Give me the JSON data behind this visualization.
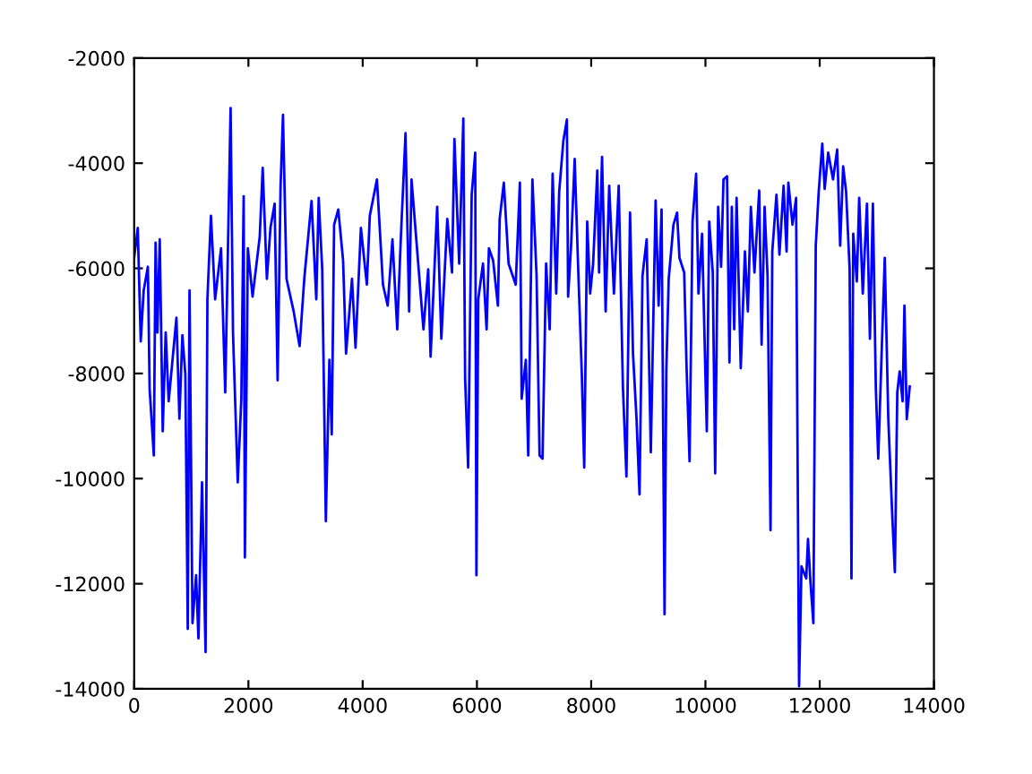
{
  "chart_data": {
    "type": "line",
    "x": [
      0,
      63,
      115,
      167,
      240,
      271,
      344,
      375,
      406,
      448,
      500,
      552,
      604,
      740,
      792,
      844,
      896,
      938,
      969,
      1021,
      1084,
      1125,
      1188,
      1250,
      1282,
      1344,
      1417,
      1521,
      1594,
      1688,
      1730,
      1813,
      1876,
      1917,
      1938,
      1990,
      2073,
      2198,
      2250,
      2323,
      2386,
      2459,
      2511,
      2563,
      2605,
      2667,
      2792,
      2896,
      2980,
      3105,
      3188,
      3230,
      3292,
      3355,
      3417,
      3459,
      3500,
      3573,
      3657,
      3709,
      3813,
      3875,
      3969,
      4073,
      4125,
      4250,
      4355,
      4438,
      4521,
      4605,
      4667,
      4750,
      4813,
      4855,
      5064,
      5147,
      5189,
      5304,
      5377,
      5481,
      5564,
      5606,
      5689,
      5762,
      5793,
      5846,
      5908,
      5970,
      5991,
      6023,
      6106,
      6169,
      6210,
      6283,
      6367,
      6398,
      6471,
      6554,
      6679,
      6752,
      6783,
      6856,
      6898,
      6971,
      7044,
      7096,
      7148,
      7211,
      7273,
      7325,
      7388,
      7440,
      7513,
      7575,
      7596,
      7648,
      7711,
      7773,
      7836,
      7878,
      7930,
      7982,
      8034,
      8107,
      8138,
      8190,
      8253,
      8315,
      8398,
      8482,
      8555,
      8617,
      8680,
      8732,
      8794,
      8846,
      8898,
      8971,
      9044,
      9096,
      9128,
      9180,
      9232,
      9284,
      9315,
      9357,
      9440,
      9503,
      9545,
      9628,
      9670,
      9722,
      9774,
      9837,
      9878,
      9941,
      10003,
      10024,
      10066,
      10128,
      10170,
      10222,
      10274,
      10316,
      10378,
      10420,
      10462,
      10503,
      10545,
      10587,
      10618,
      10691,
      10743,
      10795,
      10858,
      10941,
      10983,
      11035,
      11087,
      11139,
      11170,
      11243,
      11295,
      11368,
      11420,
      11451,
      11524,
      11587,
      11608,
      11639,
      11681,
      11764,
      11795,
      11837,
      11889,
      11931,
      11983,
      12045,
      12087,
      12149,
      12233,
      12306,
      12358,
      12410,
      12462,
      12524,
      12556,
      12587,
      12650,
      12691,
      12754,
      12827,
      12879,
      12931,
      12983,
      13025,
      13087,
      13139,
      13201,
      13274,
      13316,
      13358,
      13399,
      13451,
      13483,
      13524,
      13576
    ],
    "series": [
      {
        "color": "#0000ff",
        "values": [
          -5800,
          -5230,
          -7390,
          -6420,
          -5970,
          -8300,
          -9560,
          -5510,
          -7220,
          -5450,
          -9100,
          -7220,
          -8530,
          -6940,
          -8860,
          -7270,
          -8020,
          -12860,
          -6420,
          -12750,
          -11840,
          -13040,
          -10070,
          -13300,
          -6590,
          -5000,
          -6590,
          -5620,
          -8360,
          -2950,
          -7220,
          -10070,
          -8480,
          -4630,
          -11500,
          -5620,
          -6540,
          -5400,
          -4090,
          -6200,
          -5230,
          -4770,
          -8130,
          -4430,
          -3080,
          -6200,
          -6820,
          -7480,
          -6170,
          -4720,
          -6590,
          -4660,
          -6020,
          -10810,
          -7740,
          -9160,
          -5170,
          -4880,
          -5850,
          -7620,
          -6200,
          -7510,
          -5230,
          -6310,
          -5000,
          -4310,
          -6310,
          -6710,
          -5450,
          -7160,
          -5450,
          -3430,
          -6820,
          -4310,
          -7160,
          -6020,
          -7680,
          -4830,
          -7340,
          -5060,
          -6080,
          -3540,
          -5910,
          -3150,
          -8080,
          -9790,
          -4600,
          -3800,
          -11840,
          -6590,
          -5910,
          -7160,
          -5620,
          -5850,
          -6710,
          -5060,
          -4370,
          -5910,
          -6310,
          -4370,
          -8480,
          -7740,
          -9560,
          -4310,
          -6140,
          -9560,
          -9620,
          -5910,
          -7160,
          -4200,
          -6480,
          -4540,
          -3570,
          -3170,
          -6540,
          -5570,
          -3920,
          -6020,
          -8020,
          -9790,
          -5110,
          -6480,
          -5910,
          -4140,
          -6080,
          -3880,
          -6820,
          -4430,
          -6480,
          -4430,
          -8250,
          -9960,
          -4940,
          -7620,
          -8870,
          -10300,
          -6140,
          -5450,
          -9500,
          -6480,
          -4710,
          -6710,
          -4880,
          -12580,
          -7960,
          -6200,
          -5170,
          -4940,
          -5800,
          -6080,
          -7900,
          -9670,
          -5110,
          -4200,
          -6480,
          -5340,
          -8190,
          -9100,
          -5110,
          -6080,
          -9900,
          -4830,
          -5970,
          -4310,
          -4250,
          -7790,
          -4830,
          -7160,
          -4660,
          -6480,
          -7900,
          -5680,
          -6820,
          -4830,
          -6080,
          -4520,
          -7450,
          -4830,
          -6140,
          -10980,
          -5680,
          -4600,
          -5740,
          -4430,
          -5680,
          -4370,
          -5170,
          -4660,
          -8760,
          -13950,
          -11670,
          -11900,
          -11150,
          -11950,
          -12750,
          -5570,
          -4540,
          -3630,
          -4490,
          -3800,
          -4310,
          -3740,
          -5570,
          -4060,
          -4540,
          -6020,
          -11900,
          -5340,
          -6250,
          -4660,
          -6480,
          -4770,
          -7340,
          -4770,
          -8300,
          -9620,
          -7510,
          -5800,
          -8870,
          -10810,
          -11780,
          -8360,
          -7960,
          -8530,
          -6710,
          -8870,
          -8250
        ]
      }
    ],
    "xlim": [
      0,
      14000
    ],
    "ylim": [
      -14000,
      -2000
    ],
    "xticks": [
      0,
      2000,
      4000,
      6000,
      8000,
      10000,
      12000,
      14000
    ],
    "yticks": [
      -14000,
      -12000,
      -10000,
      -8000,
      -6000,
      -4000,
      -2000
    ]
  }
}
